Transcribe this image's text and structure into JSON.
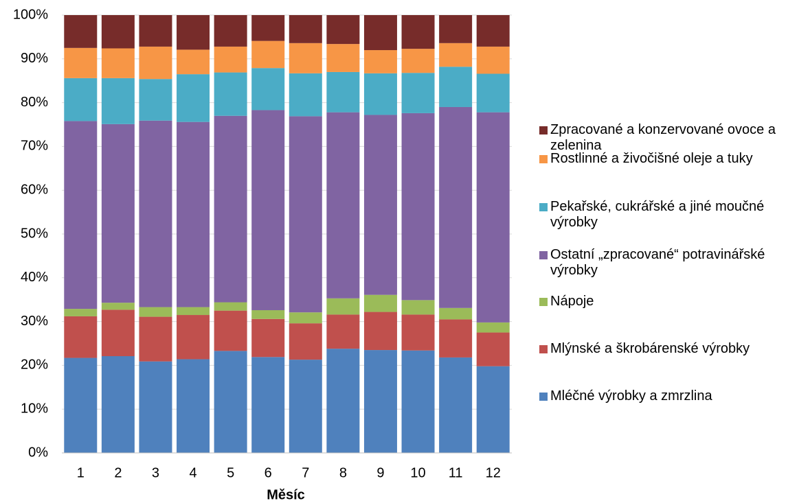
{
  "chart_data": {
    "type": "stacked_bar",
    "x_label": "Měsíc",
    "categories": [
      "1",
      "2",
      "3",
      "4",
      "5",
      "6",
      "7",
      "8",
      "9",
      "10",
      "11",
      "12"
    ],
    "series": [
      {
        "name": "Mléčné výrobky a zmrzlina",
        "color": "#4f81bd",
        "values": [
          21.7,
          22.1,
          20.9,
          21.4,
          23.3,
          21.9,
          21.3,
          23.8,
          23.5,
          23.4,
          21.8,
          19.8
        ]
      },
      {
        "name": "Mlýnské a škrobárenské výrobky",
        "color": "#c0504d",
        "values": [
          9.5,
          10.6,
          10.2,
          10.1,
          9.2,
          8.7,
          8.3,
          7.8,
          8.7,
          8.2,
          8.7,
          7.7
        ]
      },
      {
        "name": "Nápoje",
        "color": "#9bbb59",
        "values": [
          1.7,
          1.6,
          2.2,
          1.8,
          1.9,
          2.0,
          2.5,
          3.7,
          3.9,
          3.3,
          2.6,
          2.3
        ]
      },
      {
        "name": "Ostatní „zpracované“ potravinářské výrobky",
        "color": "#8064a2",
        "values": [
          42.9,
          40.8,
          42.6,
          42.3,
          42.6,
          45.7,
          44.8,
          42.5,
          41.1,
          42.7,
          45.9,
          48.0
        ]
      },
      {
        "name": "Pekařské, cukrářské a jiné moučné výrobky",
        "color": "#4bacc6",
        "values": [
          9.8,
          10.5,
          9.5,
          10.9,
          9.9,
          9.6,
          9.8,
          9.2,
          9.5,
          9.2,
          9.2,
          8.8
        ]
      },
      {
        "name": "Rostlinné a živočišné oleje a tuky",
        "color": "#f79646",
        "values": [
          6.9,
          6.8,
          7.4,
          5.6,
          5.9,
          6.2,
          6.9,
          6.4,
          5.3,
          5.5,
          5.4,
          6.2
        ]
      },
      {
        "name": "Zpracované a konzervované ovoce a zelenina",
        "color": "#772c2a",
        "values": [
          7.5,
          7.6,
          7.2,
          7.9,
          7.2,
          5.9,
          6.4,
          6.6,
          8.0,
          7.7,
          6.4,
          7.2
        ]
      }
    ],
    "ylim": [
      0,
      100
    ],
    "yticks": [
      {
        "value": 0,
        "label": "0%"
      },
      {
        "value": 10,
        "label": "10%"
      },
      {
        "value": 20,
        "label": "20%"
      },
      {
        "value": 30,
        "label": "30%"
      },
      {
        "value": 40,
        "label": "40%"
      },
      {
        "value": 50,
        "label": "50%"
      },
      {
        "value": 60,
        "label": "60%"
      },
      {
        "value": 70,
        "label": "70%"
      },
      {
        "value": 80,
        "label": "80%"
      },
      {
        "value": 90,
        "label": "90%"
      },
      {
        "value": 100,
        "label": "100%"
      }
    ],
    "grid": true,
    "legend": "right"
  }
}
